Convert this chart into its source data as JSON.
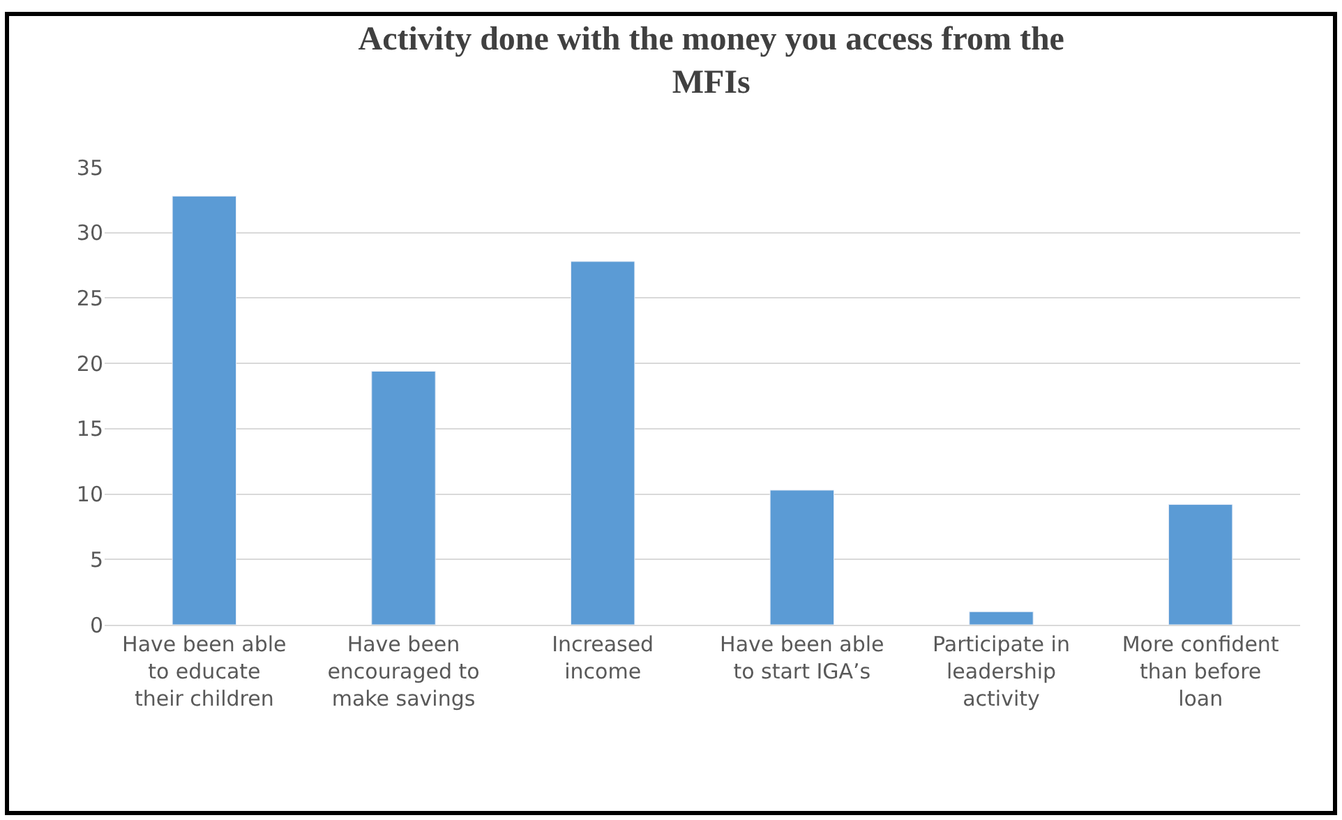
{
  "chart_data": {
    "type": "bar",
    "title": "Activity done with the money you access from the MFIs",
    "categories": [
      "Have been able to educate their children",
      "Have been encouraged to make savings",
      "Increased income",
      "Have been able to start IGA’s",
      "Participate in leadership activity",
      "More confident than before loan"
    ],
    "values": [
      32.8,
      19.4,
      27.8,
      10.3,
      1.0,
      9.2
    ],
    "color": "#5b9bd5",
    "ylim": [
      0,
      35
    ],
    "yticks": [
      0,
      5,
      10,
      15,
      20,
      25,
      30,
      35
    ],
    "grid": "y"
  }
}
